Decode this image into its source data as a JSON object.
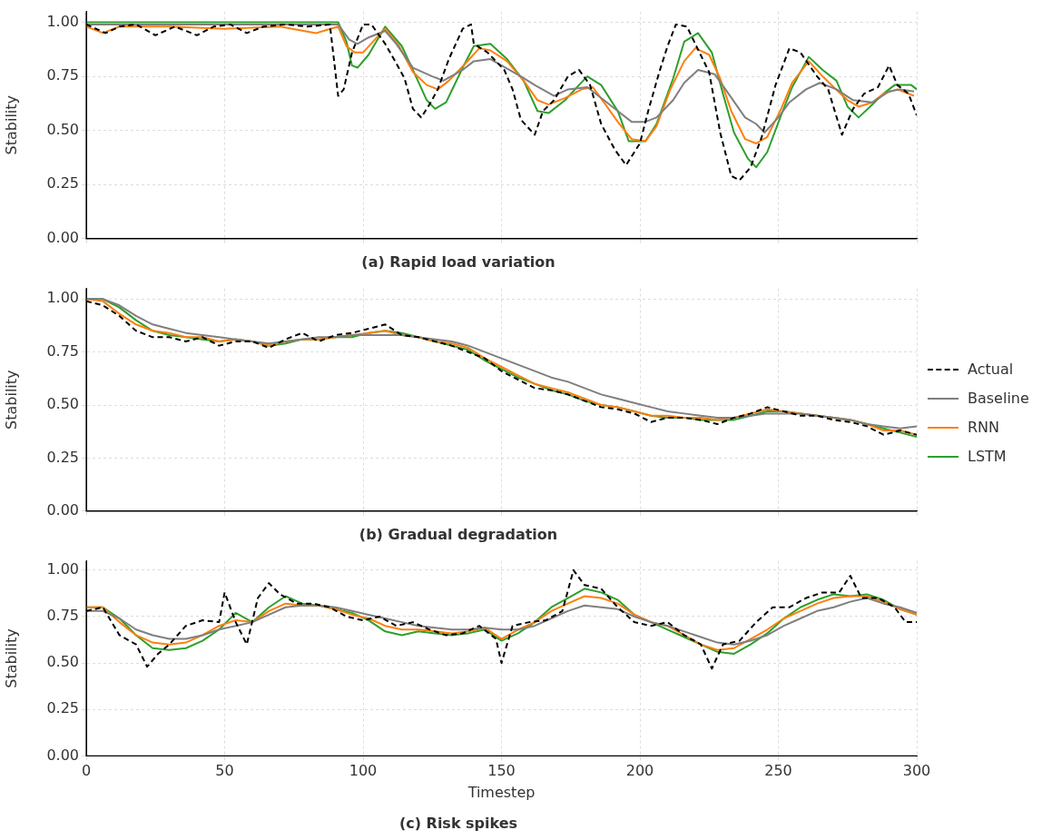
{
  "chart_data": [
    {
      "type": "line",
      "title": "(a) Rapid load variation",
      "ylabel": "Stability",
      "xlim": [
        0,
        300
      ],
      "xticks": [
        0,
        50,
        100,
        150,
        200,
        250,
        300
      ],
      "ylim": [
        0,
        1.05
      ],
      "yticks": [
        {
          "value": 0,
          "label": "0.00"
        },
        {
          "value": 0.25,
          "label": "0.25"
        },
        {
          "value": 0.5,
          "label": "0.50"
        },
        {
          "value": 0.75,
          "label": "0.75"
        },
        {
          "value": 1,
          "label": "1.00"
        }
      ],
      "grid": true,
      "tick_labels": "y",
      "marker": "none",
      "series": [
        {
          "color": "#000000",
          "line_style": "dashed",
          "x": [
            0,
            7,
            12,
            18,
            25,
            32,
            40,
            46,
            52,
            58,
            64,
            72,
            80,
            88,
            91,
            93,
            96,
            100,
            103,
            108,
            112,
            115,
            118,
            121,
            124,
            127,
            131,
            136,
            139,
            140,
            145,
            151,
            154,
            157,
            162,
            165,
            169,
            174,
            178,
            182,
            186,
            191,
            195,
            200,
            203,
            207,
            210,
            213,
            217,
            220,
            225,
            229,
            233,
            236,
            240,
            244,
            249,
            254,
            258,
            264,
            268,
            273,
            277,
            281,
            286,
            290,
            293,
            297,
            300
          ],
          "values": [
            0.99,
            0.95,
            0.98,
            0.99,
            0.94,
            0.98,
            0.94,
            0.98,
            0.99,
            0.95,
            0.98,
            0.99,
            0.98,
            0.99,
            0.66,
            0.69,
            0.86,
            0.99,
            0.99,
            0.9,
            0.81,
            0.74,
            0.6,
            0.56,
            0.62,
            0.69,
            0.83,
            0.97,
            0.99,
            0.9,
            0.86,
            0.78,
            0.69,
            0.55,
            0.48,
            0.59,
            0.64,
            0.75,
            0.78,
            0.71,
            0.53,
            0.41,
            0.34,
            0.44,
            0.59,
            0.77,
            0.89,
            0.99,
            0.98,
            0.9,
            0.77,
            0.49,
            0.29,
            0.27,
            0.33,
            0.47,
            0.71,
            0.88,
            0.86,
            0.75,
            0.69,
            0.48,
            0.6,
            0.67,
            0.7,
            0.8,
            0.71,
            0.67,
            0.57
          ]
        },
        {
          "color": "#7f7f7f",
          "x": [
            0,
            30,
            60,
            91,
            95,
            98,
            102,
            108,
            112,
            118,
            125,
            129,
            136,
            140,
            146,
            157,
            162,
            169,
            174,
            181,
            187,
            192,
            197,
            202,
            206,
            212,
            216,
            221,
            227,
            232,
            238,
            242,
            245,
            250,
            254,
            260,
            265,
            271,
            277,
            284,
            290,
            294,
            299
          ],
          "values": [
            0.99,
            0.99,
            0.99,
            0.99,
            0.92,
            0.9,
            0.93,
            0.96,
            0.9,
            0.79,
            0.75,
            0.73,
            0.78,
            0.82,
            0.83,
            0.75,
            0.71,
            0.66,
            0.69,
            0.7,
            0.64,
            0.59,
            0.54,
            0.54,
            0.56,
            0.64,
            0.72,
            0.78,
            0.76,
            0.67,
            0.56,
            0.53,
            0.49,
            0.56,
            0.63,
            0.69,
            0.72,
            0.69,
            0.64,
            0.63,
            0.68,
            0.69,
            0.68
          ]
        },
        {
          "color": "#ff7f0e",
          "x": [
            0,
            6,
            12,
            30,
            50,
            70,
            83,
            91,
            94,
            97,
            100,
            105,
            108,
            113,
            118,
            123,
            127,
            131,
            137,
            142,
            146,
            152,
            158,
            163,
            167,
            173,
            179,
            183,
            187,
            192,
            197,
            202,
            206,
            211,
            216,
            220,
            225,
            229,
            233,
            238,
            242,
            246,
            251,
            255,
            261,
            266,
            270,
            275,
            279,
            284,
            288,
            293,
            299
          ],
          "values": [
            0.98,
            0.95,
            0.98,
            0.98,
            0.97,
            0.98,
            0.95,
            0.98,
            0.89,
            0.86,
            0.86,
            0.93,
            0.97,
            0.89,
            0.77,
            0.71,
            0.69,
            0.73,
            0.81,
            0.88,
            0.87,
            0.82,
            0.73,
            0.64,
            0.62,
            0.65,
            0.69,
            0.7,
            0.63,
            0.54,
            0.46,
            0.45,
            0.52,
            0.69,
            0.82,
            0.88,
            0.85,
            0.74,
            0.59,
            0.46,
            0.44,
            0.47,
            0.6,
            0.72,
            0.82,
            0.75,
            0.7,
            0.64,
            0.61,
            0.63,
            0.67,
            0.69,
            0.66
          ]
        },
        {
          "color": "#2ca02c",
          "x": [
            0,
            30,
            60,
            91,
            94,
            96,
            98,
            102,
            108,
            114,
            118,
            123,
            126,
            130,
            136,
            140,
            146,
            152,
            158,
            163,
            167,
            173,
            178,
            181,
            186,
            192,
            196,
            202,
            206,
            212,
            216,
            221,
            226,
            230,
            234,
            239,
            242,
            246,
            251,
            255,
            261,
            266,
            271,
            275,
            279,
            284,
            288,
            292,
            298,
            300
          ],
          "values": [
            1.0,
            1.0,
            1.0,
            1.0,
            0.91,
            0.8,
            0.79,
            0.85,
            0.98,
            0.89,
            0.78,
            0.64,
            0.6,
            0.63,
            0.79,
            0.89,
            0.9,
            0.83,
            0.73,
            0.59,
            0.58,
            0.64,
            0.71,
            0.75,
            0.71,
            0.59,
            0.45,
            0.45,
            0.53,
            0.74,
            0.91,
            0.95,
            0.86,
            0.67,
            0.49,
            0.37,
            0.33,
            0.4,
            0.57,
            0.7,
            0.84,
            0.78,
            0.73,
            0.61,
            0.56,
            0.62,
            0.67,
            0.71,
            0.71,
            0.69
          ]
        }
      ]
    },
    {
      "type": "line",
      "title": "(b) Gradual degradation",
      "ylabel": "Stability",
      "xlim": [
        0,
        300
      ],
      "xticks": [
        0,
        50,
        100,
        150,
        200,
        250,
        300
      ],
      "ylim": [
        0,
        1.05
      ],
      "yticks": [
        {
          "value": 0,
          "label": "0.00"
        },
        {
          "value": 0.25,
          "label": "0.25"
        },
        {
          "value": 0.5,
          "label": "0.50"
        },
        {
          "value": 0.75,
          "label": "0.75"
        },
        {
          "value": 1,
          "label": "1.00"
        }
      ],
      "grid": true,
      "tick_labels": "y",
      "legend": "right",
      "marker": "none",
      "x": [
        0,
        6,
        12,
        18,
        24,
        30,
        36,
        42,
        48,
        54,
        60,
        66,
        72,
        78,
        84,
        90,
        96,
        102,
        108,
        114,
        120,
        126,
        132,
        138,
        144,
        150,
        156,
        162,
        168,
        174,
        180,
        186,
        192,
        198,
        204,
        210,
        216,
        222,
        228,
        234,
        240,
        246,
        252,
        258,
        264,
        270,
        276,
        282,
        288,
        294,
        300
      ],
      "series": [
        {
          "name": "Actual",
          "color": "#000000",
          "line_style": "dashed",
          "values": [
            0.99,
            0.97,
            0.92,
            0.85,
            0.82,
            0.82,
            0.8,
            0.82,
            0.78,
            0.8,
            0.8,
            0.77,
            0.81,
            0.84,
            0.8,
            0.83,
            0.84,
            0.86,
            0.88,
            0.83,
            0.82,
            0.8,
            0.78,
            0.75,
            0.72,
            0.66,
            0.62,
            0.58,
            0.57,
            0.55,
            0.52,
            0.49,
            0.48,
            0.46,
            0.42,
            0.44,
            0.44,
            0.43,
            0.41,
            0.44,
            0.46,
            0.49,
            0.47,
            0.45,
            0.45,
            0.43,
            0.42,
            0.4,
            0.36,
            0.38,
            0.36
          ]
        },
        {
          "name": "Baseline",
          "color": "#7f7f7f",
          "values": [
            1.0,
            1.0,
            0.97,
            0.92,
            0.88,
            0.86,
            0.84,
            0.83,
            0.82,
            0.81,
            0.8,
            0.79,
            0.8,
            0.81,
            0.82,
            0.82,
            0.83,
            0.83,
            0.83,
            0.83,
            0.82,
            0.81,
            0.8,
            0.78,
            0.75,
            0.72,
            0.69,
            0.66,
            0.63,
            0.61,
            0.58,
            0.55,
            0.53,
            0.51,
            0.49,
            0.47,
            0.46,
            0.45,
            0.44,
            0.44,
            0.45,
            0.46,
            0.46,
            0.46,
            0.45,
            0.44,
            0.43,
            0.41,
            0.4,
            0.39,
            0.4
          ]
        },
        {
          "name": "RNN",
          "color": "#ff7f0e",
          "values": [
            1.0,
            0.99,
            0.93,
            0.88,
            0.85,
            0.84,
            0.82,
            0.82,
            0.8,
            0.81,
            0.8,
            0.78,
            0.8,
            0.81,
            0.81,
            0.82,
            0.83,
            0.84,
            0.85,
            0.83,
            0.82,
            0.8,
            0.79,
            0.77,
            0.72,
            0.68,
            0.64,
            0.6,
            0.58,
            0.56,
            0.53,
            0.5,
            0.49,
            0.47,
            0.45,
            0.45,
            0.44,
            0.44,
            0.43,
            0.44,
            0.46,
            0.48,
            0.47,
            0.46,
            0.45,
            0.44,
            0.43,
            0.41,
            0.38,
            0.38,
            0.36
          ]
        },
        {
          "name": "LSTM",
          "color": "#2ca02c",
          "values": [
            1.0,
            1.0,
            0.96,
            0.9,
            0.85,
            0.83,
            0.82,
            0.81,
            0.8,
            0.81,
            0.8,
            0.78,
            0.79,
            0.81,
            0.81,
            0.82,
            0.82,
            0.84,
            0.85,
            0.84,
            0.82,
            0.8,
            0.78,
            0.76,
            0.71,
            0.67,
            0.63,
            0.6,
            0.57,
            0.55,
            0.52,
            0.5,
            0.49,
            0.47,
            0.45,
            0.44,
            0.44,
            0.43,
            0.43,
            0.43,
            0.45,
            0.47,
            0.47,
            0.46,
            0.45,
            0.44,
            0.43,
            0.41,
            0.39,
            0.37,
            0.35
          ]
        }
      ]
    },
    {
      "type": "line",
      "title": "(c) Risk spikes",
      "xlabel": "Timestep",
      "ylabel": "Stability",
      "xlim": [
        0,
        300
      ],
      "xticks": [
        0,
        50,
        100,
        150,
        200,
        250,
        300
      ],
      "ylim": [
        0,
        1.05
      ],
      "yticks": [
        {
          "value": 0,
          "label": "0.00"
        },
        {
          "value": 0.25,
          "label": "0.25"
        },
        {
          "value": 0.5,
          "label": "0.50"
        },
        {
          "value": 0.75,
          "label": "0.75"
        },
        {
          "value": 1,
          "label": "1.00"
        }
      ],
      "grid": true,
      "marker": "none",
      "x": [
        0,
        6,
        12,
        18,
        24,
        30,
        36,
        42,
        48,
        54,
        60,
        66,
        72,
        78,
        84,
        90,
        96,
        102,
        108,
        114,
        120,
        126,
        132,
        138,
        144,
        150,
        156,
        162,
        168,
        174,
        180,
        186,
        192,
        198,
        204,
        210,
        216,
        222,
        228,
        234,
        240,
        246,
        252,
        258,
        264,
        270,
        276,
        282,
        288,
        294,
        300
      ],
      "series": [
        {
          "color": "#000000",
          "line_style": "dashed",
          "x": [
            0,
            6,
            12,
            18,
            22,
            26,
            30,
            36,
            42,
            48,
            50,
            54,
            58,
            62,
            66,
            70,
            76,
            82,
            88,
            94,
            100,
            106,
            112,
            118,
            124,
            130,
            136,
            142,
            148,
            150,
            154,
            160,
            166,
            172,
            176,
            180,
            186,
            192,
            198,
            204,
            210,
            216,
            222,
            226,
            230,
            236,
            242,
            248,
            254,
            260,
            266,
            272,
            276,
            280,
            286,
            292,
            296,
            300
          ],
          "values": [
            0.78,
            0.8,
            0.65,
            0.6,
            0.48,
            0.55,
            0.6,
            0.7,
            0.73,
            0.72,
            0.88,
            0.72,
            0.6,
            0.85,
            0.93,
            0.87,
            0.82,
            0.82,
            0.8,
            0.75,
            0.73,
            0.75,
            0.7,
            0.72,
            0.68,
            0.65,
            0.66,
            0.7,
            0.63,
            0.5,
            0.7,
            0.72,
            0.73,
            0.78,
            1.0,
            0.92,
            0.9,
            0.8,
            0.72,
            0.7,
            0.72,
            0.65,
            0.6,
            0.47,
            0.6,
            0.62,
            0.72,
            0.8,
            0.8,
            0.85,
            0.88,
            0.88,
            0.97,
            0.85,
            0.85,
            0.8,
            0.72,
            0.72
          ]
        },
        {
          "color": "#7f7f7f",
          "values": [
            0.78,
            0.78,
            0.74,
            0.68,
            0.65,
            0.63,
            0.63,
            0.65,
            0.68,
            0.7,
            0.72,
            0.76,
            0.8,
            0.81,
            0.81,
            0.8,
            0.78,
            0.76,
            0.74,
            0.72,
            0.7,
            0.69,
            0.68,
            0.68,
            0.69,
            0.68,
            0.68,
            0.7,
            0.74,
            0.78,
            0.81,
            0.8,
            0.79,
            0.75,
            0.72,
            0.7,
            0.67,
            0.64,
            0.61,
            0.6,
            0.62,
            0.65,
            0.7,
            0.74,
            0.78,
            0.8,
            0.83,
            0.85,
            0.82,
            0.8,
            0.77
          ]
        },
        {
          "color": "#ff7f0e",
          "values": [
            0.8,
            0.8,
            0.72,
            0.65,
            0.61,
            0.6,
            0.61,
            0.65,
            0.7,
            0.73,
            0.72,
            0.78,
            0.82,
            0.81,
            0.81,
            0.79,
            0.76,
            0.74,
            0.7,
            0.68,
            0.68,
            0.67,
            0.66,
            0.67,
            0.69,
            0.63,
            0.68,
            0.72,
            0.78,
            0.82,
            0.86,
            0.85,
            0.82,
            0.76,
            0.72,
            0.7,
            0.65,
            0.6,
            0.57,
            0.58,
            0.63,
            0.68,
            0.74,
            0.78,
            0.82,
            0.85,
            0.86,
            0.86,
            0.83,
            0.79,
            0.76
          ]
        },
        {
          "color": "#2ca02c",
          "values": [
            0.8,
            0.8,
            0.74,
            0.65,
            0.58,
            0.57,
            0.58,
            0.62,
            0.68,
            0.77,
            0.72,
            0.8,
            0.86,
            0.82,
            0.81,
            0.79,
            0.77,
            0.73,
            0.67,
            0.65,
            0.67,
            0.66,
            0.65,
            0.66,
            0.68,
            0.62,
            0.66,
            0.72,
            0.8,
            0.85,
            0.9,
            0.88,
            0.84,
            0.76,
            0.72,
            0.68,
            0.64,
            0.6,
            0.56,
            0.55,
            0.6,
            0.66,
            0.74,
            0.8,
            0.84,
            0.87,
            0.86,
            0.87,
            0.84,
            0.79,
            0.76
          ]
        }
      ]
    }
  ]
}
